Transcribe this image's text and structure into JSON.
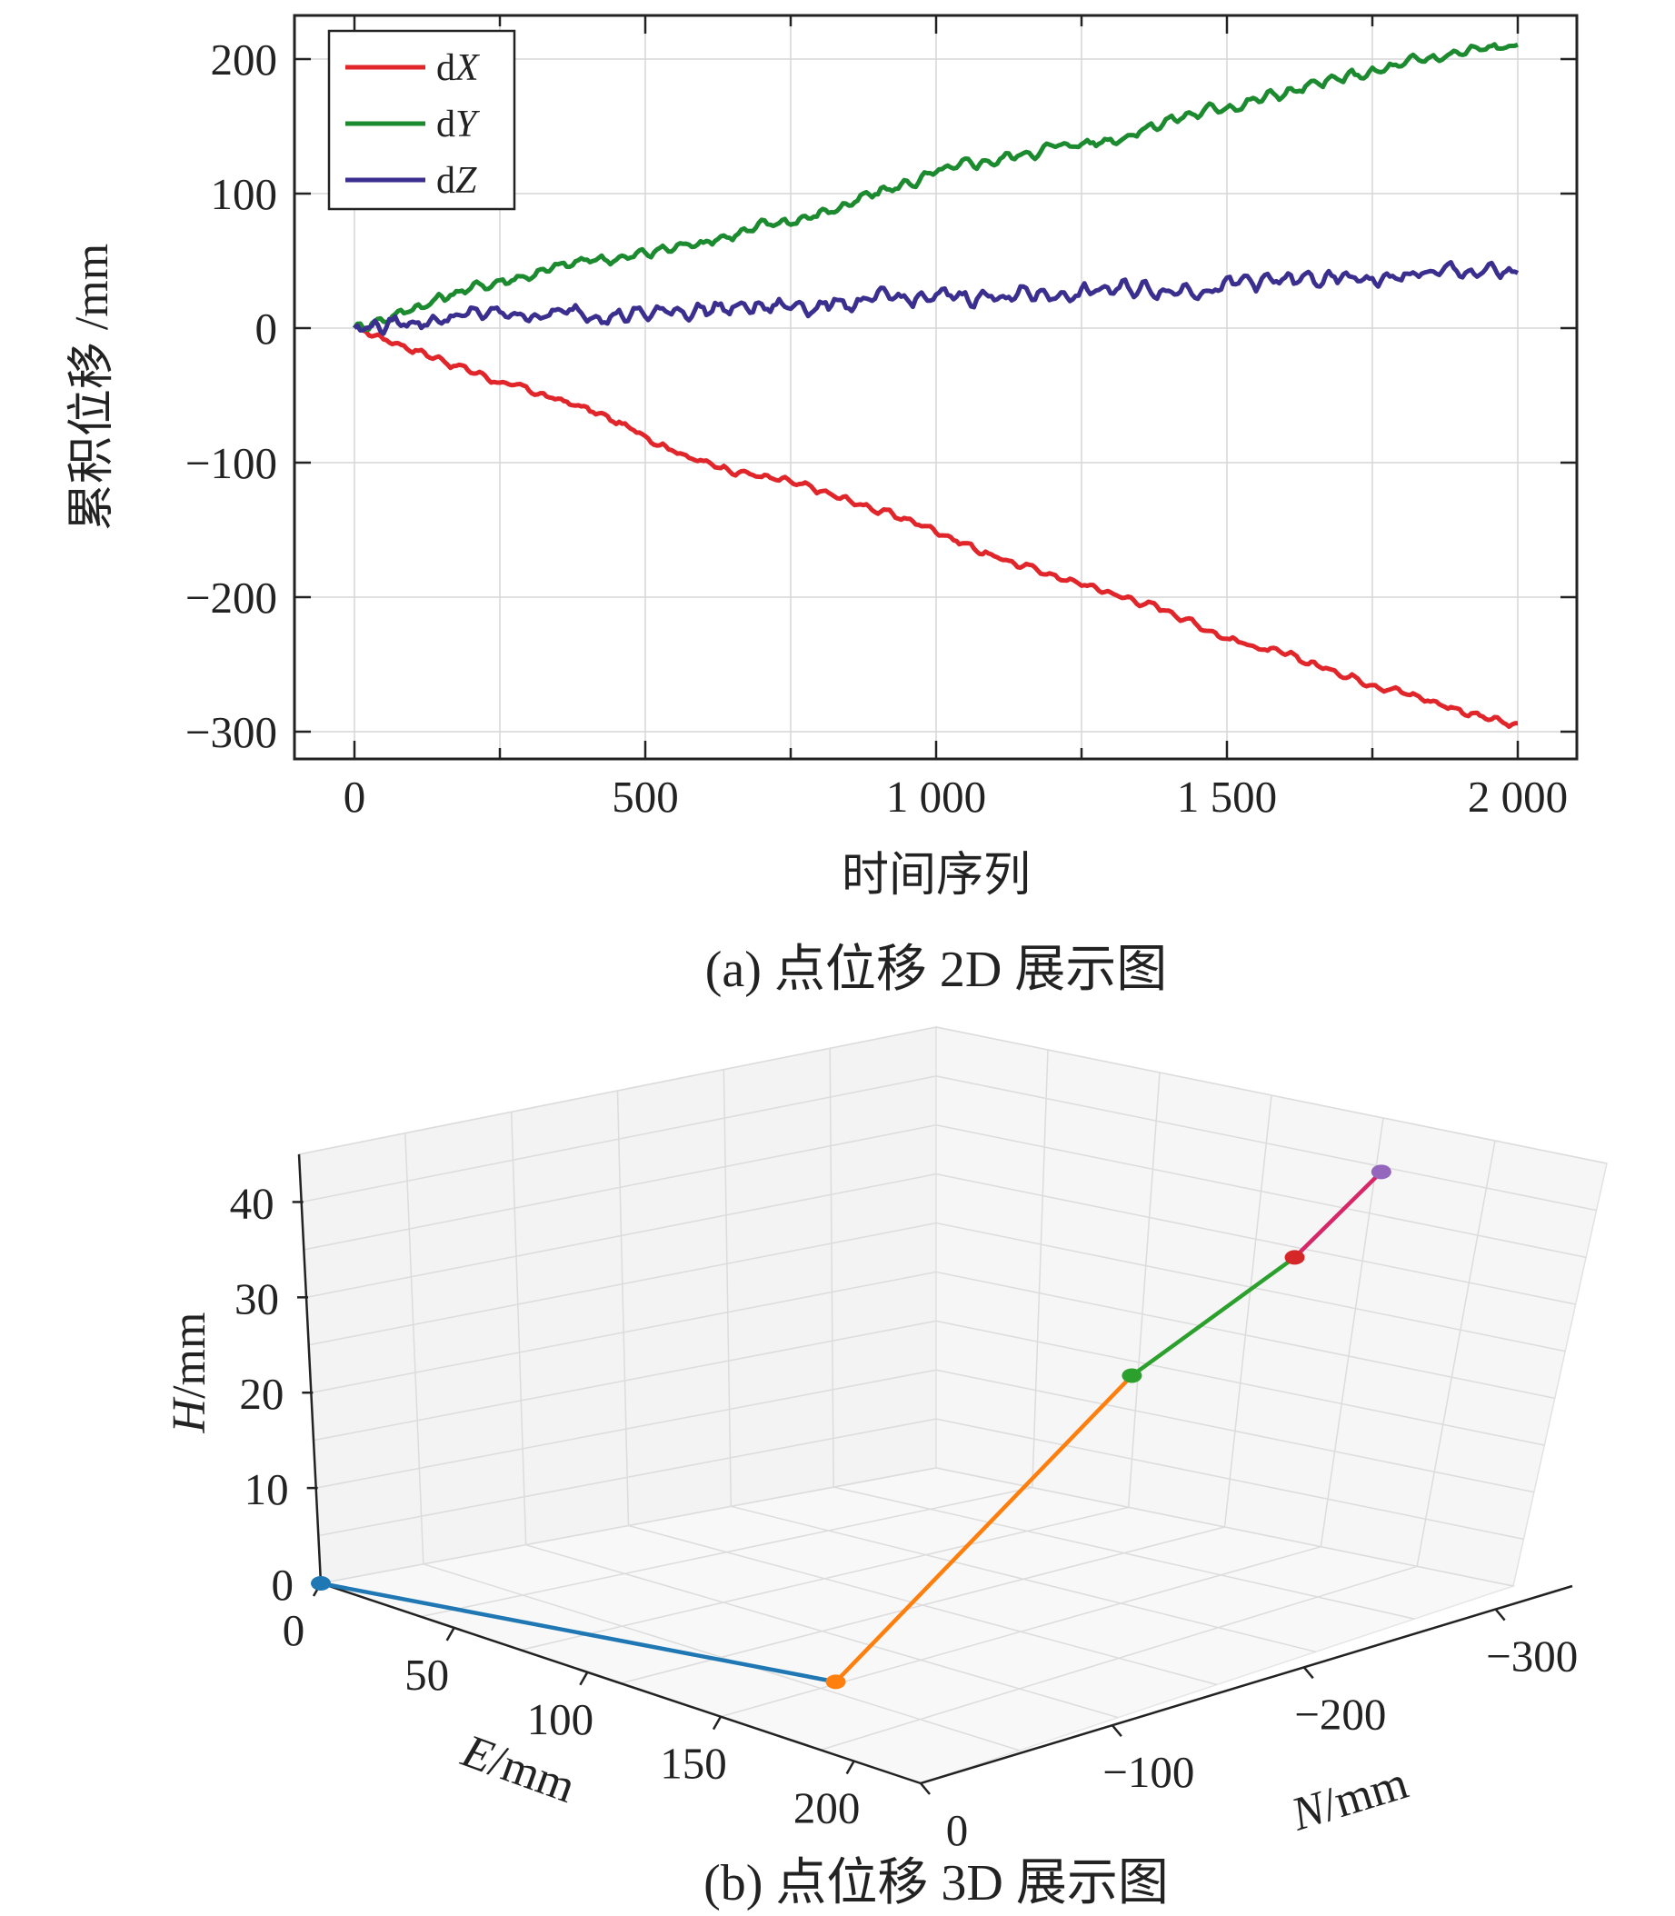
{
  "chart_data": [
    {
      "type": "line",
      "title": "",
      "caption": "(a) 点位移 2D 展示图",
      "xlabel": "时间序列",
      "ylabel": "累积位移 /mm",
      "xlim": [
        -100,
        2090
      ],
      "ylim": [
        -320,
        235
      ],
      "xticks": [
        0,
        500,
        1000,
        1500,
        2000
      ],
      "xtick_labels": [
        "0",
        "500",
        "1 000",
        "1 500",
        "2 000"
      ],
      "yticks": [
        200,
        100,
        0,
        -100,
        -200,
        -300
      ],
      "ytick_labels": [
        "200",
        "100",
        "0",
        "−100",
        "−200",
        "−300"
      ],
      "grid": true,
      "legend_position": "top-left",
      "series": [
        {
          "name": "dX",
          "legend_prefix": "d",
          "legend_var": "X",
          "color": "#e0262a",
          "x": [
            0,
            100,
            250,
            400,
            500,
            600,
            750,
            900,
            1000,
            1100,
            1250,
            1400,
            1500,
            1650,
            1800,
            2000
          ],
          "values": [
            0,
            -15,
            -40,
            -60,
            -80,
            -100,
            -115,
            -135,
            -150,
            -170,
            -190,
            -210,
            -230,
            -250,
            -270,
            -297
          ]
        },
        {
          "name": "dY",
          "legend_prefix": "d",
          "legend_var": "Y",
          "color": "#1c8a2e",
          "x": [
            0,
            100,
            200,
            300,
            400,
            500,
            600,
            700,
            800,
            900,
            1000,
            1100,
            1200,
            1300,
            1400,
            1500,
            1600,
            1700,
            1800,
            1900,
            2000
          ],
          "values": [
            0,
            15,
            30,
            40,
            50,
            55,
            65,
            75,
            85,
            100,
            115,
            125,
            135,
            140,
            155,
            165,
            175,
            185,
            195,
            205,
            210
          ]
        },
        {
          "name": "dZ",
          "legend_prefix": "d",
          "legend_var": "Z",
          "color": "#3a2f8f",
          "x": [
            0,
            100,
            200,
            300,
            400,
            500,
            600,
            700,
            800,
            900,
            1000,
            1100,
            1200,
            1300,
            1400,
            1500,
            1600,
            1700,
            1800,
            1900,
            2000
          ],
          "values": [
            0,
            5,
            10,
            10,
            12,
            10,
            15,
            15,
            18,
            20,
            22,
            25,
            25,
            28,
            30,
            32,
            35,
            35,
            38,
            42,
            40
          ]
        }
      ]
    },
    {
      "type": "line3d",
      "title": "",
      "caption": "(b) 点位移 3D 展示图",
      "xlabel_prefix": "",
      "xlabel_var": "E",
      "xlabel_unit": "/mm",
      "ylabel_var": "N",
      "ylabel_unit": "/mm",
      "zlabel_var": "H",
      "zlabel_unit": "/mm",
      "e_ticks": [
        0,
        50,
        100,
        150,
        200
      ],
      "n_ticks": [
        0,
        -100,
        -200,
        -300
      ],
      "n_tick_labels": [
        "0",
        "−100",
        "−200",
        "−300"
      ],
      "h_ticks": [
        0,
        10,
        20,
        30,
        40
      ],
      "points": [
        {
          "E": 0,
          "N": 0,
          "H": 0,
          "color": "#1f77b4"
        },
        {
          "E": 150,
          "N": -60,
          "H": 0,
          "color": "#ff7f0e"
        },
        {
          "E": 165,
          "N": -200,
          "H": 25,
          "color": "#2ca02c"
        },
        {
          "E": 170,
          "N": -280,
          "H": 33,
          "color": "#d62728"
        },
        {
          "E": 175,
          "N": -320,
          "H": 40,
          "color": "#9467bd"
        }
      ],
      "segment_colors": [
        "#1f77b4",
        "#ff7f0e",
        "#2ca02c",
        "#d62769"
      ]
    }
  ]
}
